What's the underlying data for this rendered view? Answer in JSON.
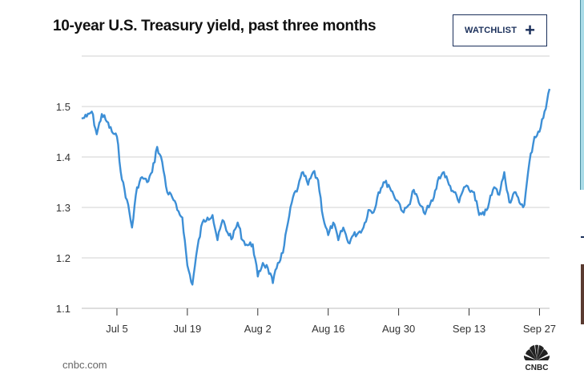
{
  "header": {
    "title": "10-year U.S. Treasury yield, past three months",
    "watchlist_label": "WATCHLIST",
    "watchlist_icon": "plus-icon"
  },
  "footer": {
    "source": "cnbc.com",
    "logo_text": "CNBC"
  },
  "chart_data": {
    "type": "line",
    "title": "",
    "xlabel": "",
    "ylabel": "",
    "ylim": [
      1.1,
      1.6
    ],
    "yticks": [
      "1.1",
      "1.2",
      "1.3",
      "1.4",
      "1.5"
    ],
    "xticks": [
      "Jul 5",
      "Jul 19",
      "Aug 2",
      "Aug 16",
      "Aug 30",
      "Sep 13",
      "Sep 27"
    ],
    "xlim": [
      "Jun 28",
      "Sep 29"
    ],
    "grid": true,
    "line_color": "#3d8fd6",
    "x": [
      "Jun 28",
      "Jun 29",
      "Jun 30",
      "Jul 1",
      "Jul 2",
      "Jul 3",
      "Jul 4",
      "Jul 5",
      "Jul 6",
      "Jul 7",
      "Jul 8",
      "Jul 9",
      "Jul 10",
      "Jul 11",
      "Jul 12",
      "Jul 13",
      "Jul 14",
      "Jul 15",
      "Jul 16",
      "Jul 17",
      "Jul 18",
      "Jul 19",
      "Jul 20",
      "Jul 21",
      "Jul 22",
      "Jul 23",
      "Jul 24",
      "Jul 25",
      "Jul 26",
      "Jul 27",
      "Jul 28",
      "Jul 29",
      "Jul 30",
      "Jul 31",
      "Aug 1",
      "Aug 2",
      "Aug 3",
      "Aug 4",
      "Aug 5",
      "Aug 6",
      "Aug 7",
      "Aug 8",
      "Aug 9",
      "Aug 10",
      "Aug 11",
      "Aug 12",
      "Aug 13",
      "Aug 14",
      "Aug 15",
      "Aug 16",
      "Aug 17",
      "Aug 18",
      "Aug 19",
      "Aug 20",
      "Aug 21",
      "Aug 22",
      "Aug 23",
      "Aug 24",
      "Aug 25",
      "Aug 26",
      "Aug 27",
      "Aug 28",
      "Aug 29",
      "Aug 30",
      "Aug 31",
      "Sep 1",
      "Sep 2",
      "Sep 3",
      "Sep 4",
      "Sep 5",
      "Sep 6",
      "Sep 7",
      "Sep 8",
      "Sep 9",
      "Sep 10",
      "Sep 11",
      "Sep 12",
      "Sep 13",
      "Sep 14",
      "Sep 15",
      "Sep 16",
      "Sep 17",
      "Sep 18",
      "Sep 19",
      "Sep 20",
      "Sep 21",
      "Sep 22",
      "Sep 23",
      "Sep 24",
      "Sep 25",
      "Sep 26",
      "Sep 27",
      "Sep 28",
      "Sep 29"
    ],
    "values": [
      1.476,
      1.48,
      1.49,
      1.445,
      1.485,
      1.47,
      1.45,
      1.44,
      1.355,
      1.315,
      1.26,
      1.34,
      1.36,
      1.35,
      1.37,
      1.42,
      1.39,
      1.33,
      1.32,
      1.295,
      1.28,
      1.185,
      1.147,
      1.22,
      1.27,
      1.28,
      1.285,
      1.235,
      1.275,
      1.25,
      1.24,
      1.27,
      1.235,
      1.225,
      1.227,
      1.163,
      1.19,
      1.18,
      1.15,
      1.19,
      1.21,
      1.27,
      1.32,
      1.34,
      1.37,
      1.345,
      1.37,
      1.354,
      1.28,
      1.245,
      1.27,
      1.235,
      1.26,
      1.23,
      1.245,
      1.25,
      1.26,
      1.295,
      1.29,
      1.33,
      1.35,
      1.345,
      1.325,
      1.31,
      1.29,
      1.305,
      1.335,
      1.31,
      1.29,
      1.3,
      1.32,
      1.36,
      1.37,
      1.345,
      1.33,
      1.31,
      1.34,
      1.335,
      1.33,
      1.285,
      1.285,
      1.31,
      1.34,
      1.325,
      1.37,
      1.31,
      1.33,
      1.31,
      1.305,
      1.39,
      1.44,
      1.45,
      1.49,
      1.535
    ]
  }
}
